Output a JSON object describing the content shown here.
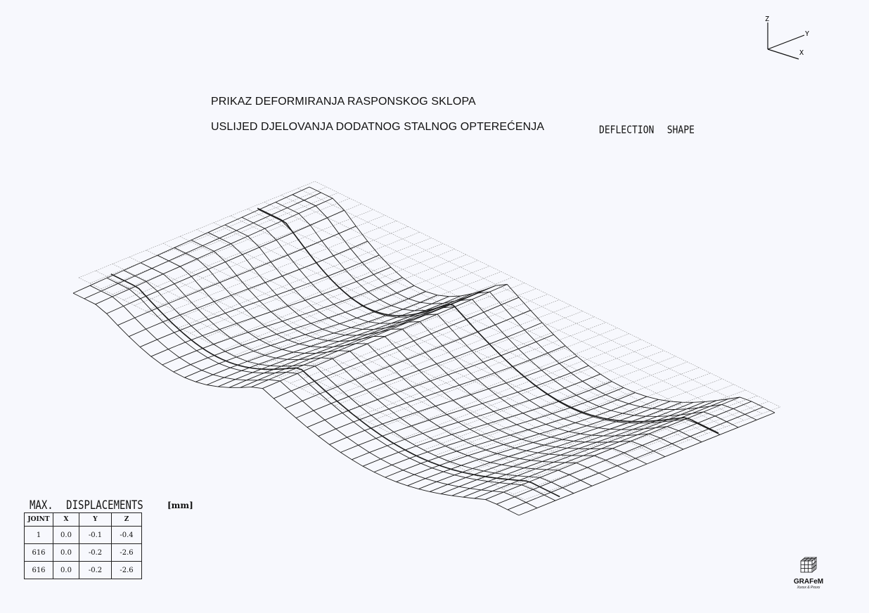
{
  "title_line1": "PRIKAZ DEFORMIRANJA RASPONSKOG SKLOPA",
  "title_line2": "USLIJED DJELOVANJA DODATNOG STALNOG OPTEREĆENJA",
  "tag": {
    "word1": "DEFLECTION",
    "word2": "SHAPE"
  },
  "axes": {
    "z": "Z",
    "y": "Y",
    "x": "X"
  },
  "displacements": {
    "word1": "MAX.",
    "word2": "DISPLACEMENTS",
    "units": "[mm]",
    "headers": [
      "JOINT",
      "X",
      "Y",
      "Z"
    ],
    "rows": [
      [
        "1",
        "0.0",
        "-0.1",
        "-0.4"
      ],
      [
        "616",
        "0.0",
        "-0.2",
        "-2.6"
      ],
      [
        "616",
        "0.0",
        "-0.2",
        "-2.6"
      ]
    ]
  },
  "logo": {
    "name": "GRAFeM",
    "sub": "Xxxxx & Pxxxx"
  },
  "colors": {
    "mesh": "#1c1c1c",
    "undeformed": "#8a8a8a",
    "paper": "#f7f8fd"
  }
}
